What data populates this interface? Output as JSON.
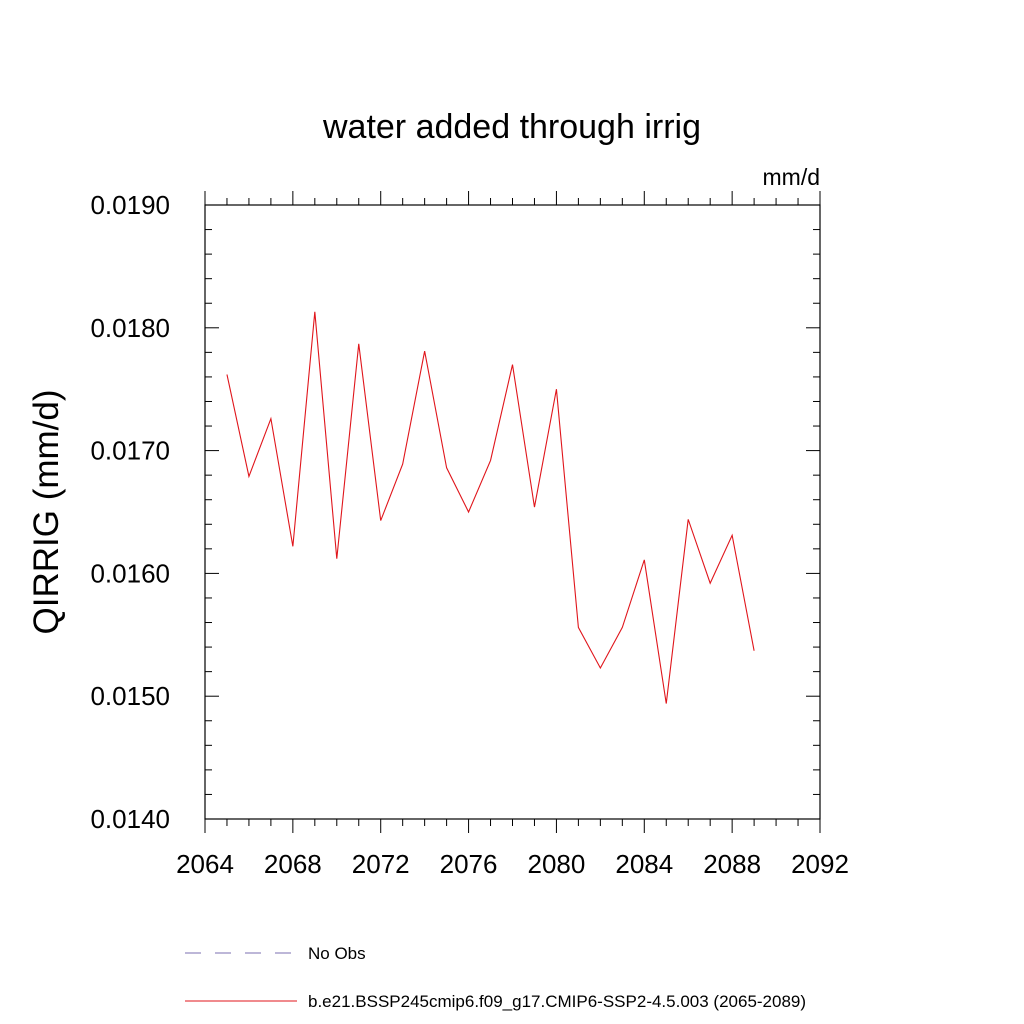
{
  "chart_data": {
    "type": "line",
    "title": "water added through irrig",
    "units_label": "mm/d",
    "xlabel": "",
    "ylabel": "QIRRIG  (mm/d)",
    "xlim": [
      2064,
      2092
    ],
    "ylim": [
      0.014,
      0.019
    ],
    "x_ticks": [
      2064,
      2068,
      2072,
      2076,
      2080,
      2084,
      2088,
      2092
    ],
    "x_tick_labels": [
      "2064",
      "2068",
      "2072",
      "2076",
      "2080",
      "2084",
      "2088",
      "2092"
    ],
    "y_ticks": [
      0.014,
      0.015,
      0.016,
      0.017,
      0.018,
      0.019
    ],
    "y_tick_labels": [
      "0.0140",
      "0.0150",
      "0.0160",
      "0.0170",
      "0.0180",
      "0.0190"
    ],
    "grid": false,
    "legend_position": "bottom",
    "series": [
      {
        "name": "No Obs",
        "style": "dashed",
        "color": "#7b6fb0",
        "x": [],
        "values": []
      },
      {
        "name": "b.e21.BSSP245cmip6.f09_g17.CMIP6-SSP2-4.5.003 (2065-2089)",
        "style": "solid",
        "color": "#e0151b",
        "x": [
          2065,
          2066,
          2067,
          2068,
          2069,
          2070,
          2071,
          2072,
          2073,
          2074,
          2075,
          2076,
          2077,
          2078,
          2079,
          2080,
          2081,
          2082,
          2083,
          2084,
          2085,
          2086,
          2087,
          2088,
          2089
        ],
        "values": [
          0.01762,
          0.01679,
          0.01726,
          0.01622,
          0.01813,
          0.01612,
          0.01787,
          0.01643,
          0.01689,
          0.01781,
          0.01686,
          0.0165,
          0.01692,
          0.0177,
          0.01654,
          0.0175,
          0.01556,
          0.01523,
          0.01556,
          0.01611,
          0.01494,
          0.01644,
          0.01592,
          0.01631,
          0.01537
        ]
      }
    ]
  }
}
